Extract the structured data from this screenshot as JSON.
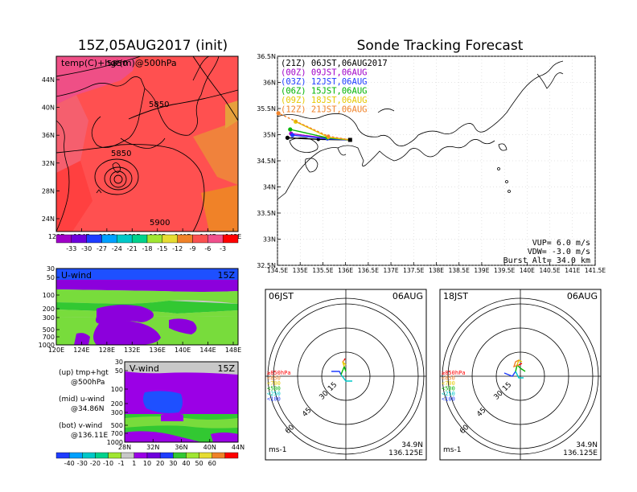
{
  "titles": {
    "left": "15Z,05AUG2017 (init)",
    "right": "Sonde Tracking Forecast"
  },
  "top_map": {
    "label": "temp(C)+hgt(m)@500hPa",
    "contours": [
      "5850",
      "5850",
      "5900",
      "5850"
    ],
    "lat_ticks": [
      "44N",
      "40N",
      "36N",
      "32N",
      "28N",
      "24N"
    ],
    "lon_ticks": [
      "120E",
      "124E",
      "128E",
      "132E",
      "136E",
      "140E",
      "144E",
      "148E"
    ],
    "colorbar": [
      "-33",
      "-30",
      "-27",
      "-24",
      "-21",
      "-18",
      "-15",
      "-12",
      "-9",
      "-6",
      "-3"
    ],
    "colors": [
      "#a000c8",
      "#6e00dc",
      "#1e3cff",
      "#00a0ff",
      "#00c8c8",
      "#00d28c",
      "#a0e632",
      "#e6dc32",
      "#f08228",
      "#fa5050",
      "#f0508c",
      "#ff0000"
    ]
  },
  "u_panel": {
    "label": "U-wind",
    "time": "15Z",
    "p_ticks": [
      "30",
      "50",
      "100",
      "200",
      "300",
      "500",
      "700",
      "1000"
    ],
    "lon_ticks": [
      "120E",
      "124E",
      "128E",
      "132E",
      "136E",
      "140E",
      "144E",
      "148E"
    ]
  },
  "v_panel": {
    "label": "V-wind",
    "time": "15Z",
    "p_ticks": [
      "30",
      "50",
      "100",
      "200",
      "300",
      "500",
      "700",
      "1000"
    ],
    "lat_ticks": [
      "28N",
      "32N",
      "36N",
      "40N",
      "44N"
    ]
  },
  "notes": {
    "up1": "(up) tmp+hgt",
    "up2": "@500hPa",
    "mid1": "(mid) u-wind",
    "mid2": "@34.86N",
    "bot1": "(bot) v-wind",
    "bot2": "@136.11E"
  },
  "wind_colorbar": {
    "labels": [
      "-40",
      "-30",
      "-20",
      "-10",
      "-1",
      "1",
      "10",
      "20",
      "30",
      "40",
      "50",
      "60"
    ],
    "colors": [
      "#1e3cff",
      "#00a0ff",
      "#00c8c8",
      "#00d28c",
      "#a0e632",
      "#c8c8c8",
      "#9b00e6",
      "#6e00dc",
      "#1e3cff",
      "#32c832",
      "#a0e632",
      "#e6dc32",
      "#f08228",
      "#ff0000"
    ]
  },
  "track_map": {
    "legend": [
      {
        "text": "(21Z)  06JST,06AUG2017",
        "color": "#000000"
      },
      {
        "text": "(00Z)  09JST,06AUG",
        "color": "#a000c8"
      },
      {
        "text": "(03Z)  12JST,06AUG",
        "color": "#1e3cff"
      },
      {
        "text": "(06Z)  15JST,06AUG",
        "color": "#00b400"
      },
      {
        "text": "(09Z)  18JST,06AUG",
        "color": "#e6c800"
      },
      {
        "text": "(12Z)  21JST,06AUG",
        "color": "#f08228"
      }
    ],
    "lat_ticks": [
      "36.5N",
      "36N",
      "35.5N",
      "35N",
      "34.5N",
      "34N",
      "33.5N",
      "33N",
      "32.5N"
    ],
    "lon_ticks": [
      "134.5E",
      "135E",
      "135.5E",
      "136E",
      "136.5E",
      "137E",
      "137.5E",
      "138E",
      "138.5E",
      "139E",
      "139.5E",
      "140E",
      "140.5E",
      "141E",
      "141.5E"
    ],
    "vup": "VUP=  6.0 m/s",
    "vdw": "VDW= -3.0 m/s",
    "burst": "Burst Alt=  34.0 km"
  },
  "polar_left": {
    "time": "06JST",
    "date": "06AUG",
    "lat": "34.9N",
    "lon": "136.125E",
    "unit": "ms-1"
  },
  "polar_right": {
    "time": "18JST",
    "date": "06AUG",
    "lat": "34.9N",
    "lon": "136.125E",
    "unit": "ms-1"
  },
  "polar_common": {
    "rings": [
      "15",
      "30",
      "45",
      "60"
    ],
    "levels": [
      {
        "text": "≥850hPa",
        "color": "#ff0000"
      },
      {
        "text": "<850",
        "color": "#f08228"
      },
      {
        "text": "<700",
        "color": "#e6c800"
      },
      {
        "text": "<500",
        "color": "#00b400"
      },
      {
        "text": "<250",
        "color": "#00c8c8"
      },
      {
        "text": "<100",
        "color": "#1e3cff"
      }
    ]
  },
  "chart_data": {
    "type": "line",
    "title": "Sonde Tracking Forecast",
    "x_range": [
      134.5,
      141.5
    ],
    "y_range": [
      32.5,
      36.5
    ],
    "series": [
      {
        "name": "(21Z)  06JST,06AUG2017",
        "x": [
          136.1,
          135.4,
          134.72
        ],
        "y": [
          34.9,
          34.91,
          34.94
        ]
      },
      {
        "name": "(00Z)  09JST,06AUG",
        "x": [
          136.1,
          135.6,
          134.8
        ],
        "y": [
          34.9,
          34.93,
          35.02
        ]
      },
      {
        "name": "(03Z)  12JST,06AUG",
        "x": [
          136.1,
          135.6,
          134.83
        ],
        "y": [
          34.9,
          34.92,
          34.99
        ]
      },
      {
        "name": "(06Z)  15JST,06AUG",
        "x": [
          136.1,
          135.6,
          134.78
        ],
        "y": [
          34.9,
          34.94,
          35.1
        ]
      },
      {
        "name": "(09Z)  18JST,06AUG",
        "x": [
          136.1,
          135.62,
          134.9
        ],
        "y": [
          34.9,
          34.95,
          35.25
        ]
      },
      {
        "name": "(12Z)  21JST,06AUG",
        "x": [
          136.1,
          135.62,
          134.52
        ],
        "y": [
          34.9,
          34.97,
          35.41
        ]
      }
    ]
  }
}
